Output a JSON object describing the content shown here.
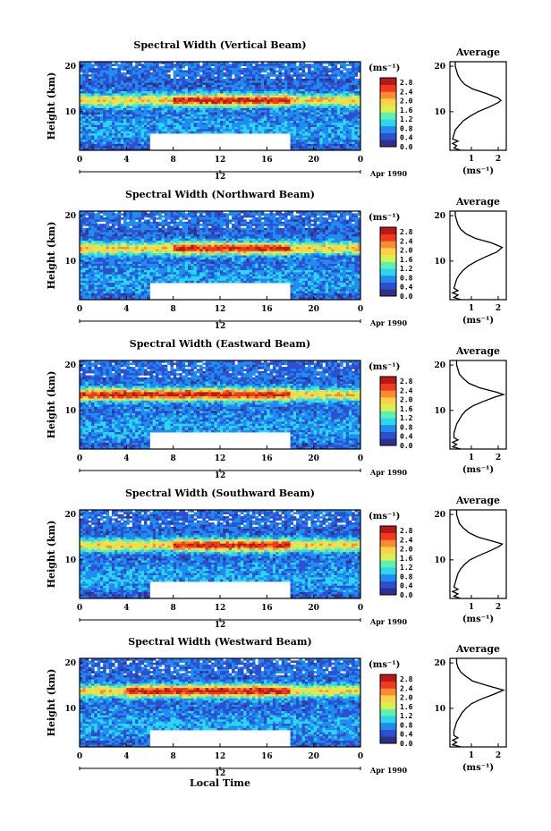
{
  "figure": {
    "xlabel": "Local Time",
    "date_label": "Apr 1990",
    "day_label": "12",
    "height_label": "Height (km)",
    "unit_label": "(ms⁻¹)",
    "average_title": "Average",
    "colorbar_ticks": [
      "2.8",
      "2.4",
      "2.0",
      "1.6",
      "1.2",
      "0.8",
      "0.4",
      "0.0"
    ],
    "colormap": [
      "#30308a",
      "#2c4fd0",
      "#1f8cf0",
      "#2cd6f0",
      "#60f0b0",
      "#d8f050",
      "#ffd24a",
      "#ff8a30",
      "#f03a20",
      "#b81818"
    ]
  },
  "chart_data": [
    {
      "type": "heatmap",
      "title": "Spectral Width (Vertical Beam)",
      "xlabel": "Local Time",
      "ylabel": "Height (km)",
      "x_ticks": [
        "0",
        "4",
        "8",
        "12",
        "16",
        "20",
        "0"
      ],
      "xlim": [
        0,
        24
      ],
      "y_ticks": [
        "20",
        "10"
      ],
      "ylim": [
        1.5,
        21
      ],
      "colorbar": {
        "label": "(ms⁻¹)",
        "range": [
          0.0,
          3.0
        ]
      },
      "peak_height_km": 12.5,
      "peak_start_h": 8,
      "peak_end_h": 18,
      "data_gap": {
        "x": [
          6,
          18
        ],
        "y": [
          1.5,
          5
        ]
      },
      "average": {
        "title": "Average",
        "xlabel": "(ms⁻¹)",
        "x_ticks": [
          "1",
          "2"
        ],
        "xlim": [
          0.2,
          2.3
        ],
        "y_ticks": [
          "20",
          "10"
        ],
        "profile": [
          [
            1.5,
            0.6
          ],
          [
            2,
            0.35
          ],
          [
            2.5,
            0.45
          ],
          [
            3,
            0.3
          ],
          [
            3.5,
            0.5
          ],
          [
            4,
            0.3
          ],
          [
            5,
            0.35
          ],
          [
            6,
            0.4
          ],
          [
            7,
            0.55
          ],
          [
            8,
            0.7
          ],
          [
            9,
            0.95
          ],
          [
            10,
            1.25
          ],
          [
            11,
            1.65
          ],
          [
            12,
            2.0
          ],
          [
            12.5,
            2.1
          ],
          [
            13,
            2.0
          ],
          [
            14,
            1.55
          ],
          [
            15,
            1.05
          ],
          [
            16,
            0.75
          ],
          [
            17,
            0.6
          ],
          [
            18,
            0.5
          ],
          [
            19,
            0.45
          ],
          [
            20,
            0.4
          ],
          [
            21,
            0.4
          ]
        ]
      }
    },
    {
      "type": "heatmap",
      "title": "Spectral Width (Northward Beam)",
      "xlabel": "Local Time",
      "ylabel": "Height (km)",
      "x_ticks": [
        "0",
        "4",
        "8",
        "12",
        "16",
        "20",
        "0"
      ],
      "xlim": [
        0,
        24
      ],
      "y_ticks": [
        "20",
        "10"
      ],
      "ylim": [
        1.5,
        21
      ],
      "colorbar": {
        "label": "(ms⁻¹)",
        "range": [
          0.0,
          3.0
        ]
      },
      "peak_height_km": 12.8,
      "peak_start_h": 8,
      "peak_end_h": 18,
      "data_gap": {
        "x": [
          6,
          18
        ],
        "y": [
          1.5,
          5
        ]
      },
      "average": {
        "title": "Average",
        "xlabel": "(ms⁻¹)",
        "x_ticks": [
          "1",
          "2"
        ],
        "xlim": [
          0.2,
          2.3
        ],
        "y_ticks": [
          "20",
          "10"
        ],
        "profile": [
          [
            1.5,
            0.6
          ],
          [
            2,
            0.35
          ],
          [
            2.5,
            0.5
          ],
          [
            3,
            0.3
          ],
          [
            3.5,
            0.5
          ],
          [
            4,
            0.35
          ],
          [
            5,
            0.4
          ],
          [
            6,
            0.45
          ],
          [
            7,
            0.55
          ],
          [
            8,
            0.7
          ],
          [
            9,
            0.9
          ],
          [
            10,
            1.2
          ],
          [
            11,
            1.55
          ],
          [
            12,
            1.95
          ],
          [
            13,
            2.15
          ],
          [
            14,
            1.75
          ],
          [
            15,
            1.15
          ],
          [
            16,
            0.8
          ],
          [
            17,
            0.6
          ],
          [
            18,
            0.5
          ],
          [
            19,
            0.45
          ],
          [
            20,
            0.4
          ],
          [
            21,
            0.4
          ]
        ]
      }
    },
    {
      "type": "heatmap",
      "title": "Spectral Width (Eastward Beam)",
      "xlabel": "Local Time",
      "ylabel": "Height (km)",
      "x_ticks": [
        "0",
        "4",
        "8",
        "12",
        "16",
        "20",
        "0"
      ],
      "xlim": [
        0,
        24
      ],
      "y_ticks": [
        "20",
        "10"
      ],
      "ylim": [
        1.5,
        21
      ],
      "colorbar": {
        "label": "(ms⁻¹)",
        "range": [
          0.0,
          3.0
        ]
      },
      "peak_height_km": 13.5,
      "peak_start_h": 0,
      "peak_end_h": 18,
      "data_gap": {
        "x": [
          6,
          18
        ],
        "y": [
          1.5,
          5
        ]
      },
      "average": {
        "title": "Average",
        "xlabel": "(ms⁻¹)",
        "x_ticks": [
          "1",
          "2"
        ],
        "xlim": [
          0.2,
          2.3
        ],
        "y_ticks": [
          "20",
          "10"
        ],
        "profile": [
          [
            1.5,
            0.6
          ],
          [
            2,
            0.3
          ],
          [
            2.5,
            0.45
          ],
          [
            3,
            0.3
          ],
          [
            3.5,
            0.5
          ],
          [
            4,
            0.35
          ],
          [
            5,
            0.35
          ],
          [
            6,
            0.4
          ],
          [
            7,
            0.45
          ],
          [
            8,
            0.55
          ],
          [
            9,
            0.65
          ],
          [
            10,
            0.8
          ],
          [
            11,
            1.05
          ],
          [
            12,
            1.45
          ],
          [
            13,
            1.9
          ],
          [
            13.5,
            2.2
          ],
          [
            14,
            1.95
          ],
          [
            15,
            1.3
          ],
          [
            16,
            0.9
          ],
          [
            17,
            0.7
          ],
          [
            18,
            0.55
          ],
          [
            19,
            0.5
          ],
          [
            20,
            0.45
          ],
          [
            21,
            0.45
          ]
        ]
      }
    },
    {
      "type": "heatmap",
      "title": "Spectral Width (Southward Beam)",
      "xlabel": "Local Time",
      "ylabel": "Height (km)",
      "x_ticks": [
        "0",
        "4",
        "8",
        "12",
        "16",
        "20",
        "0"
      ],
      "xlim": [
        0,
        24
      ],
      "y_ticks": [
        "20",
        "10"
      ],
      "ylim": [
        1.5,
        21
      ],
      "colorbar": {
        "label": "(ms⁻¹)",
        "range": [
          0.0,
          3.0
        ]
      },
      "peak_height_km": 13.2,
      "peak_start_h": 8,
      "peak_end_h": 18,
      "data_gap": {
        "x": [
          6,
          18
        ],
        "y": [
          1.5,
          5
        ]
      },
      "average": {
        "title": "Average",
        "xlabel": "(ms⁻¹)",
        "x_ticks": [
          "1",
          "2"
        ],
        "xlim": [
          0.2,
          2.3
        ],
        "y_ticks": [
          "20",
          "10"
        ],
        "profile": [
          [
            1.5,
            0.6
          ],
          [
            2,
            0.35
          ],
          [
            2.5,
            0.5
          ],
          [
            3,
            0.3
          ],
          [
            3.5,
            0.5
          ],
          [
            4,
            0.35
          ],
          [
            5,
            0.4
          ],
          [
            6,
            0.45
          ],
          [
            7,
            0.5
          ],
          [
            8,
            0.6
          ],
          [
            9,
            0.75
          ],
          [
            10,
            0.95
          ],
          [
            11,
            1.3
          ],
          [
            12,
            1.7
          ],
          [
            13,
            2.05
          ],
          [
            13.5,
            2.15
          ],
          [
            14,
            1.85
          ],
          [
            15,
            1.25
          ],
          [
            16,
            0.9
          ],
          [
            17,
            0.7
          ],
          [
            18,
            0.55
          ],
          [
            19,
            0.5
          ],
          [
            20,
            0.45
          ],
          [
            21,
            0.45
          ]
        ]
      }
    },
    {
      "type": "heatmap",
      "title": "Spectral Width (Westward Beam)",
      "xlabel": "Local Time",
      "ylabel": "Height (km)",
      "x_ticks": [
        "0",
        "4",
        "8",
        "12",
        "16",
        "20",
        "0"
      ],
      "xlim": [
        0,
        24
      ],
      "y_ticks": [
        "20",
        "10"
      ],
      "ylim": [
        1.5,
        21
      ],
      "colorbar": {
        "label": "(ms⁻¹)",
        "range": [
          0.0,
          3.0
        ]
      },
      "peak_height_km": 13.8,
      "peak_start_h": 4,
      "peak_end_h": 18,
      "data_gap": {
        "x": [
          6,
          18
        ],
        "y": [
          1.5,
          5
        ]
      },
      "average": {
        "title": "Average",
        "xlabel": "(ms⁻¹)",
        "x_ticks": [
          "1",
          "2"
        ],
        "xlim": [
          0.2,
          2.3
        ],
        "y_ticks": [
          "20",
          "10"
        ],
        "profile": [
          [
            1.5,
            0.6
          ],
          [
            2,
            0.3
          ],
          [
            2.5,
            0.45
          ],
          [
            3,
            0.3
          ],
          [
            3.5,
            0.5
          ],
          [
            4,
            0.35
          ],
          [
            5,
            0.35
          ],
          [
            6,
            0.4
          ],
          [
            7,
            0.45
          ],
          [
            8,
            0.55
          ],
          [
            9,
            0.65
          ],
          [
            10,
            0.8
          ],
          [
            11,
            1.0
          ],
          [
            12,
            1.35
          ],
          [
            13,
            1.8
          ],
          [
            14,
            2.2
          ],
          [
            15,
            1.6
          ],
          [
            16,
            1.05
          ],
          [
            17,
            0.8
          ],
          [
            18,
            0.6
          ],
          [
            19,
            0.5
          ],
          [
            20,
            0.45
          ],
          [
            21,
            0.45
          ]
        ]
      }
    }
  ]
}
